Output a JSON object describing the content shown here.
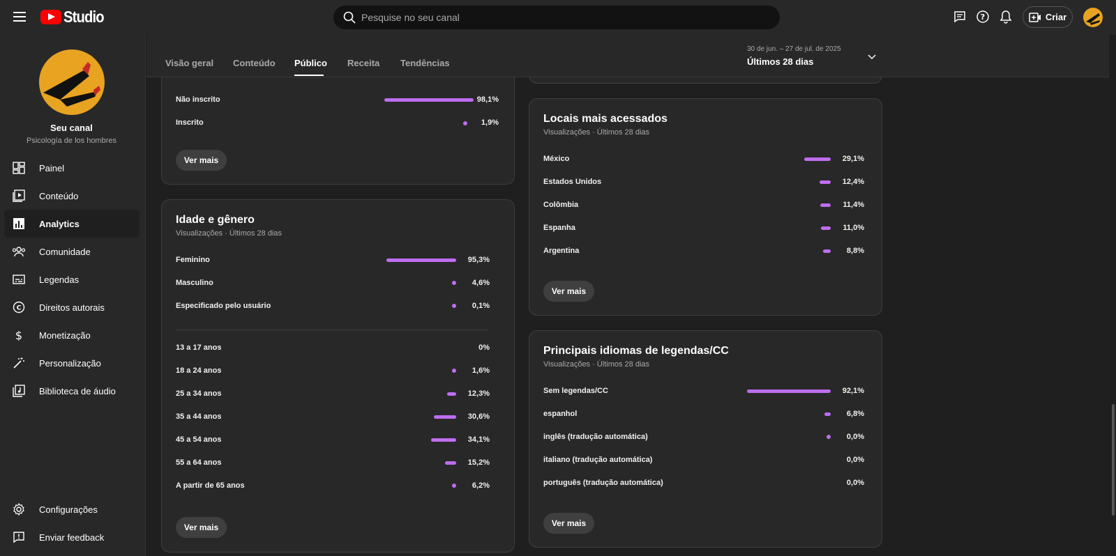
{
  "app": {
    "logo_text": "Studio"
  },
  "search": {
    "placeholder": "Pesquise no seu canal"
  },
  "header": {
    "create_label": "Criar"
  },
  "channel": {
    "name": "Seu canal",
    "handle": "Psicología de los hombres"
  },
  "sidebar": {
    "items": [
      {
        "label": "Painel",
        "icon": "dashboard-icon"
      },
      {
        "label": "Conteúdo",
        "icon": "content-icon"
      },
      {
        "label": "Analytics",
        "icon": "analytics-icon"
      },
      {
        "label": "Comunidade",
        "icon": "community-icon"
      },
      {
        "label": "Legendas",
        "icon": "subtitles-icon"
      },
      {
        "label": "Direitos autorais",
        "icon": "copyright-icon"
      },
      {
        "label": "Monetização",
        "icon": "money-icon"
      },
      {
        "label": "Personalização",
        "icon": "magic-wand-icon"
      },
      {
        "label": "Biblioteca de áudio",
        "icon": "audio-library-icon"
      }
    ],
    "bottom": [
      {
        "label": "Configurações",
        "icon": "gear-icon"
      },
      {
        "label": "Enviar feedback",
        "icon": "feedback-icon"
      }
    ]
  },
  "tabs": [
    "Visão geral",
    "Conteúdo",
    "Público",
    "Receita",
    "Tendências"
  ],
  "active_tab": "Público",
  "date_range": {
    "dates": "30 de jun. – 27 de jul. de 2025",
    "label": "Últimos 28 dias"
  },
  "subscription_card": {
    "rows": [
      {
        "label": "Não inscrito",
        "value": "98,1%",
        "fraction": 0.981
      },
      {
        "label": "Inscrito",
        "value": "1,9%",
        "fraction": 0.019
      }
    ],
    "see_more": "Ver mais"
  },
  "age_gender_card": {
    "title": "Idade e gênero",
    "subtitle": "Visualizações · Últimos 28 dias",
    "gender_rows": [
      {
        "label": "Feminino",
        "value": "95,3%",
        "fraction": 0.953
      },
      {
        "label": "Masculino",
        "value": "4,6%",
        "fraction": 0.046
      },
      {
        "label": "Especificado pelo usuário",
        "value": "0,1%",
        "fraction": 0.001
      }
    ],
    "age_rows": [
      {
        "label": "13 a 17 anos",
        "value": "0%",
        "fraction": 0
      },
      {
        "label": "18 a 24 anos",
        "value": "1,6%",
        "fraction": 0.016
      },
      {
        "label": "25 a 34 anos",
        "value": "12,3%",
        "fraction": 0.123
      },
      {
        "label": "35 a 44 anos",
        "value": "30,6%",
        "fraction": 0.306
      },
      {
        "label": "45 a 54 anos",
        "value": "34,1%",
        "fraction": 0.341
      },
      {
        "label": "55 a 64 anos",
        "value": "15,2%",
        "fraction": 0.152
      },
      {
        "label": "A partir de 65 anos",
        "value": "6,2%",
        "fraction": 0.062
      }
    ],
    "see_more": "Ver mais"
  },
  "locations_card": {
    "title": "Locais mais acessados",
    "subtitle": "Visualizações · Últimos 28 dias",
    "rows": [
      {
        "label": "México",
        "value": "29,1%",
        "fraction": 0.291
      },
      {
        "label": "Estados Unidos",
        "value": "12,4%",
        "fraction": 0.124
      },
      {
        "label": "Colômbia",
        "value": "11,4%",
        "fraction": 0.114
      },
      {
        "label": "Espanha",
        "value": "11,0%",
        "fraction": 0.11
      },
      {
        "label": "Argentina",
        "value": "8,8%",
        "fraction": 0.088
      }
    ],
    "see_more": "Ver mais"
  },
  "subtitles_card": {
    "title": "Principais idiomas de legendas/CC",
    "subtitle": "Visualizações · Últimos 28 dias",
    "rows": [
      {
        "label": "Sem legendas/CC",
        "value": "92,1%",
        "fraction": 0.921
      },
      {
        "label": "espanhol",
        "value": "6,8%",
        "fraction": 0.068
      },
      {
        "label": "inglês (tradução automática)",
        "value": "0,0%",
        "fraction": 0.0004
      },
      {
        "label": "italiano (tradução automática)",
        "value": "0,0%",
        "fraction": 0
      },
      {
        "label": "português (tradução automática)",
        "value": "0,0%",
        "fraction": 0
      }
    ],
    "see_more": "Ver mais"
  },
  "colors": {
    "accent_bar": "#be6df0",
    "brand_red": "#ff0000",
    "background": "#1f1f1f",
    "card": "#282828"
  }
}
